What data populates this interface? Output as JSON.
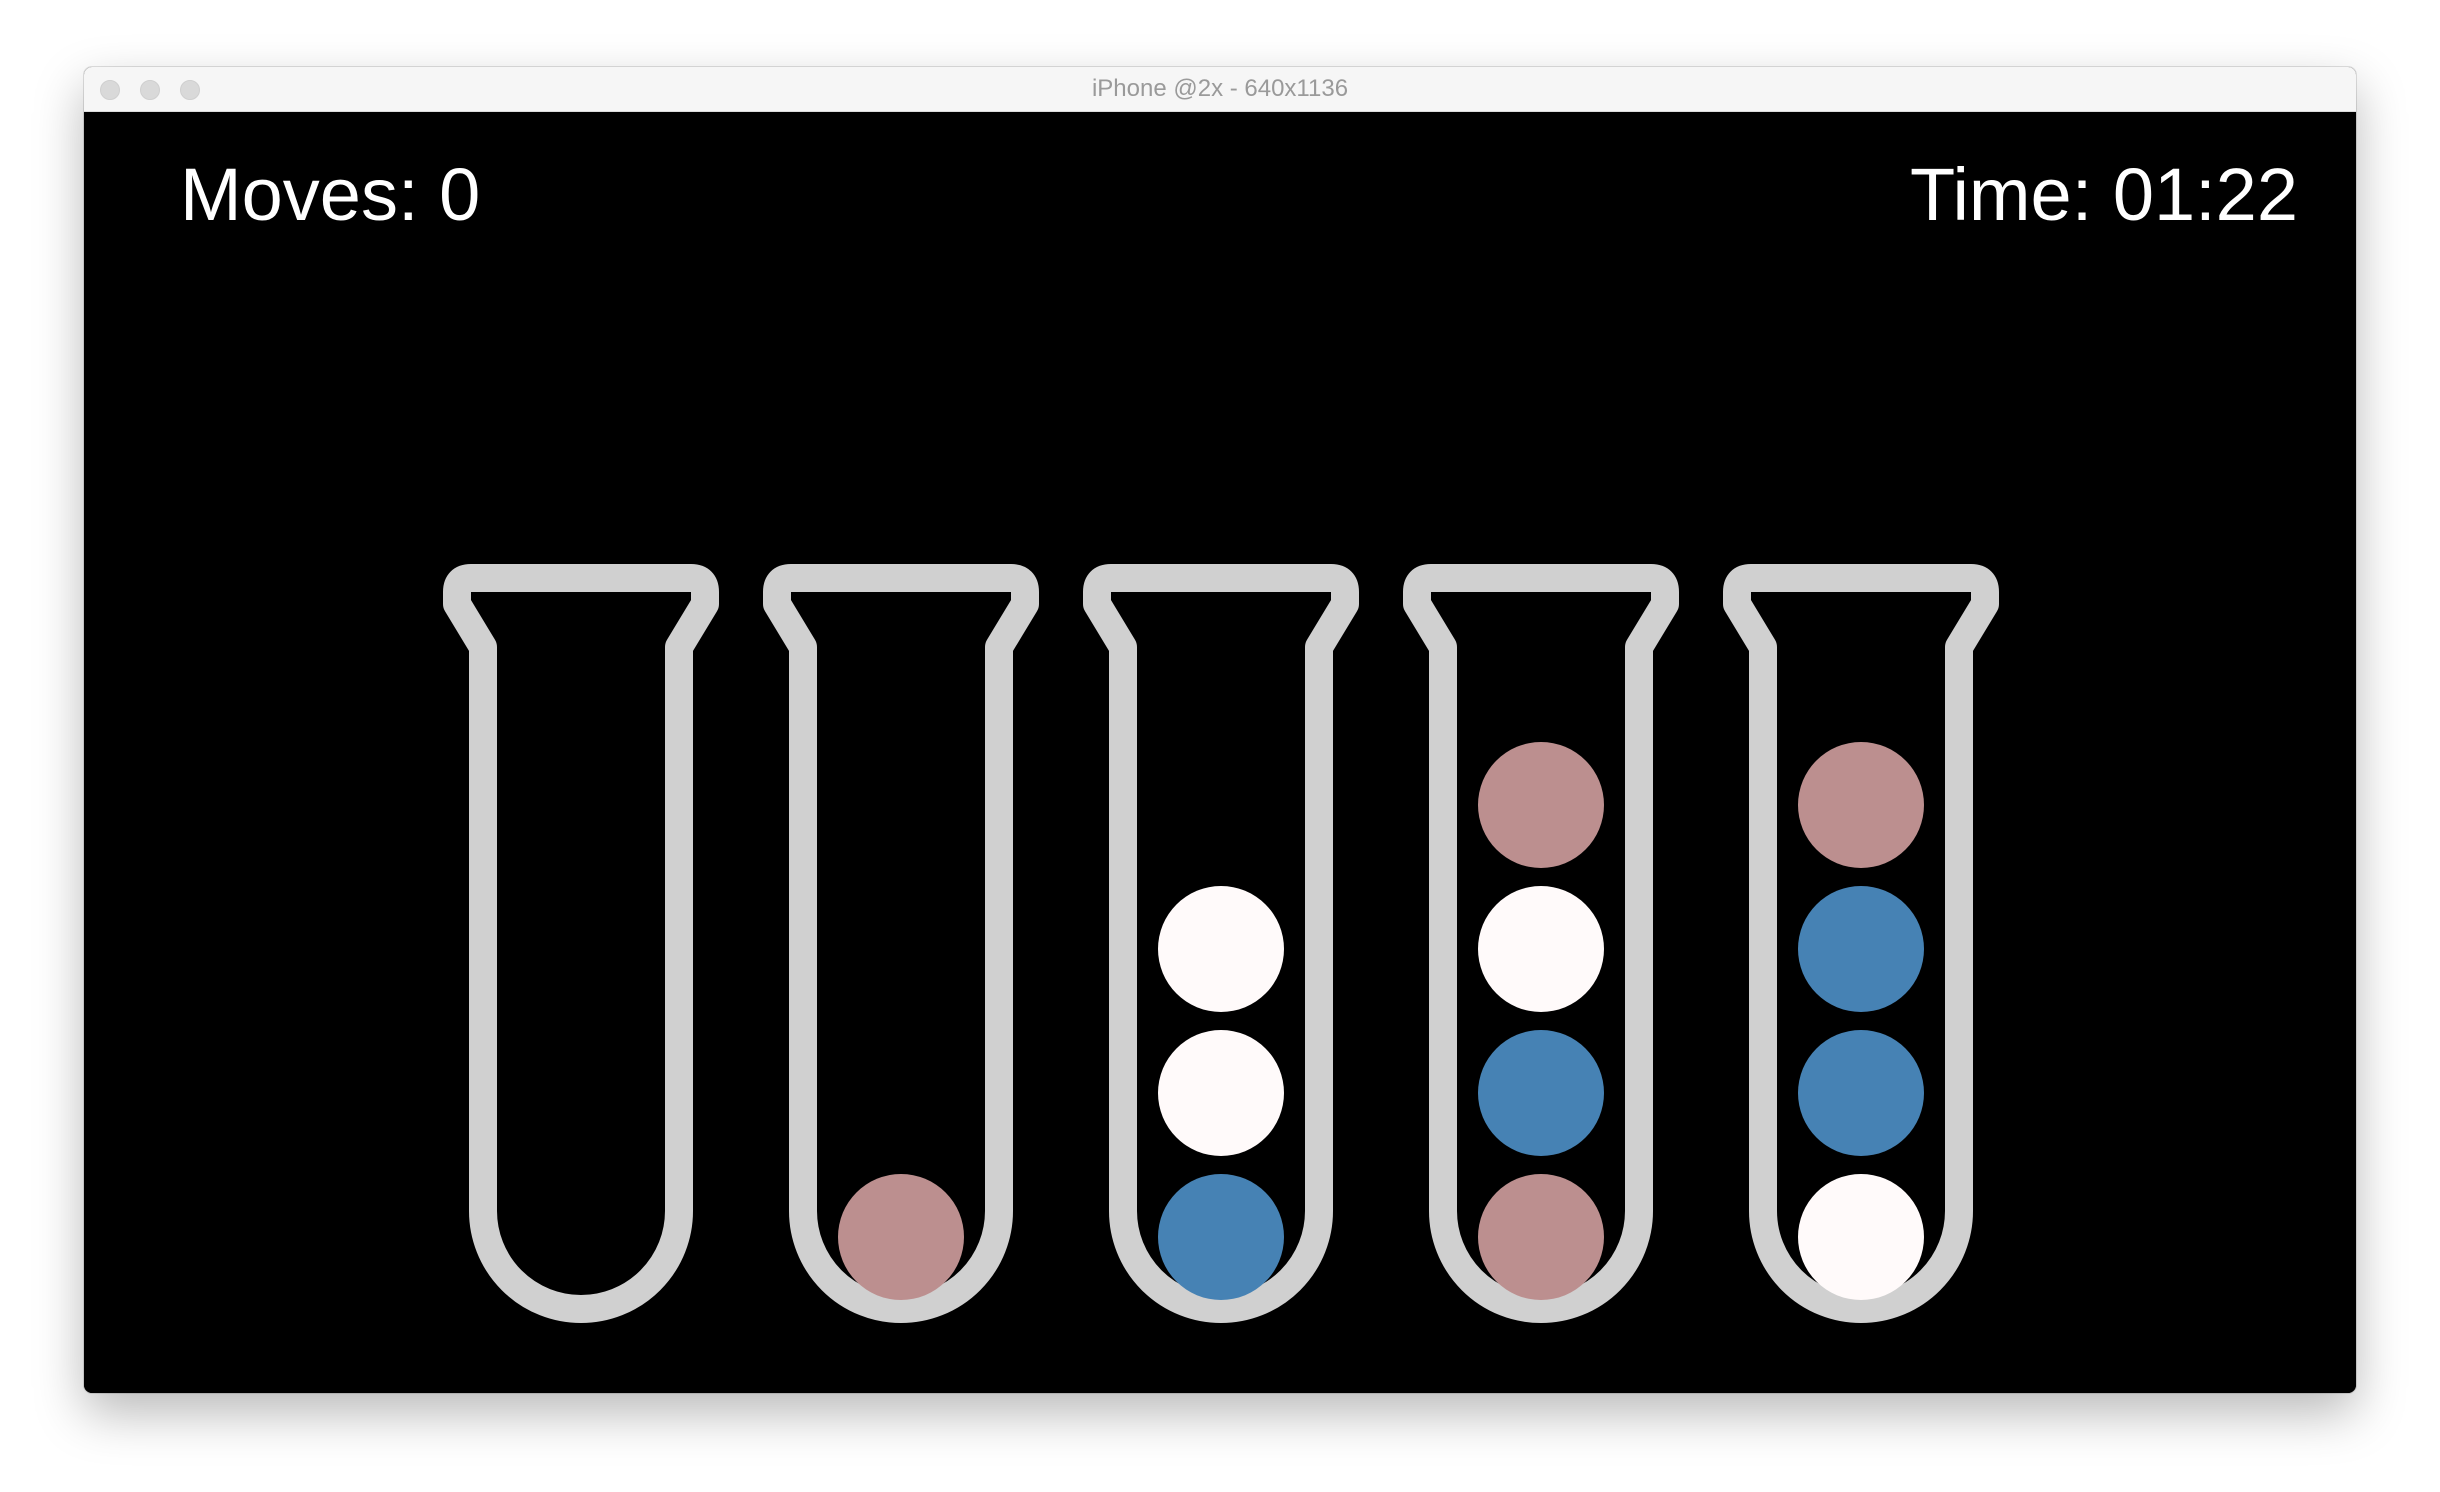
{
  "window": {
    "title": "iPhone @2x - 640x1136"
  },
  "hud": {
    "moves_label": "Moves: 0",
    "time_label": "Time: 01:22"
  },
  "colors": {
    "background": "#000000",
    "tube_outline": "#d0d0d0",
    "rose": "#bc8f8f",
    "blue": "#4682b4",
    "white": "#fffafa"
  },
  "tubes": [
    {
      "balls_bottom_to_top": []
    },
    {
      "balls_bottom_to_top": [
        "rose"
      ]
    },
    {
      "balls_bottom_to_top": [
        "blue",
        "white",
        "white"
      ]
    },
    {
      "balls_bottom_to_top": [
        "rose",
        "blue",
        "white",
        "rose"
      ]
    },
    {
      "balls_bottom_to_top": [
        "white",
        "blue",
        "blue",
        "rose"
      ]
    }
  ]
}
